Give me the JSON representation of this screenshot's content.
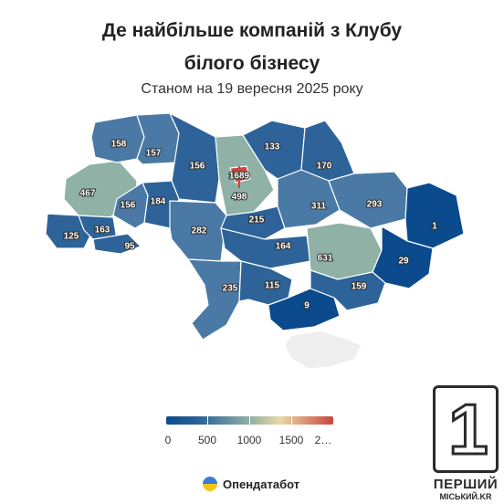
{
  "header": {
    "title_line1": "Де найбільше компаній з Клубу",
    "title_line2": "білого бізнесу",
    "subtitle": "Станом на 19 вересня 2025 року"
  },
  "colors": {
    "dark": "#0b4a8c",
    "medium": "#2d6399",
    "light": "#4a79a5",
    "pale": "#8fb1a6",
    "crimea": "#eeeeee",
    "high": "#c9473c"
  },
  "regions": [
    {
      "id": "volyn",
      "value": "158"
    },
    {
      "id": "rivne",
      "value": "157"
    },
    {
      "id": "zhytomyr",
      "value": "156"
    },
    {
      "id": "kyiv-city",
      "value": "1689"
    },
    {
      "id": "kyiv-oblast",
      "value": "498"
    },
    {
      "id": "chernihiv",
      "value": "133"
    },
    {
      "id": "sumy",
      "value": "170"
    },
    {
      "id": "lviv",
      "value": "467"
    },
    {
      "id": "ternopil",
      "value": "156"
    },
    {
      "id": "khmelnytskyi",
      "value": "184"
    },
    {
      "id": "vinnytsia",
      "value": "282"
    },
    {
      "id": "cherkasy",
      "value": "215"
    },
    {
      "id": "poltava",
      "value": "311"
    },
    {
      "id": "kharkiv",
      "value": "293"
    },
    {
      "id": "luhansk",
      "value": "1"
    },
    {
      "id": "zakarpattia",
      "value": "125"
    },
    {
      "id": "ivano-frankivsk",
      "value": "163"
    },
    {
      "id": "chernivtsi",
      "value": "95"
    },
    {
      "id": "kirovohrad",
      "value": "164"
    },
    {
      "id": "dnipropetrovsk",
      "value": "631"
    },
    {
      "id": "donetsk",
      "value": "29"
    },
    {
      "id": "odesa",
      "value": "235"
    },
    {
      "id": "mykolaiv",
      "value": "115"
    },
    {
      "id": "kherson",
      "value": "9"
    },
    {
      "id": "zaporizhzhia",
      "value": "159"
    }
  ],
  "legend": {
    "ticks": [
      "0",
      "500",
      "1000",
      "1500",
      "2…"
    ]
  },
  "brand": {
    "name": "Опендатабот",
    "logo_icon": "opendatabot-logo"
  },
  "watermark": {
    "digit": "1",
    "name": "ПЕРШИЙ",
    "sub": "МІСЬКИЙ.KR"
  }
}
